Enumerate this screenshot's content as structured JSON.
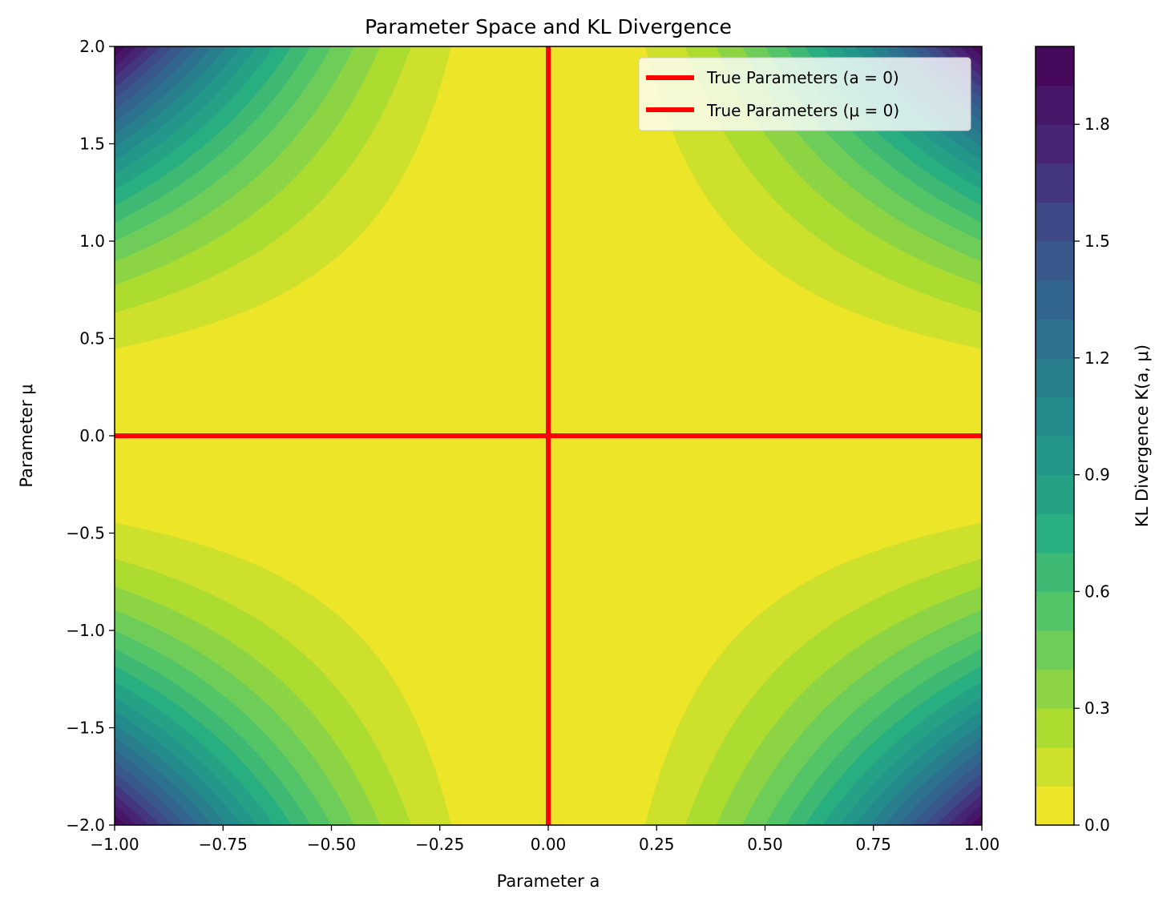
{
  "chart_data": {
    "type": "heatmap",
    "subtype": "filled-contour",
    "title": "Parameter Space and KL Divergence",
    "xlabel": "Parameter a",
    "ylabel": "Parameter μ",
    "xlim": [
      -1.0,
      1.0
    ],
    "ylim": [
      -2.0,
      2.0
    ],
    "x_ticks": [
      -1.0,
      -0.75,
      -0.5,
      -0.25,
      0.0,
      0.25,
      0.5,
      0.75,
      1.0
    ],
    "x_tick_labels": [
      "−1.00",
      "−0.75",
      "−0.50",
      "−0.25",
      "0.00",
      "0.25",
      "0.50",
      "0.75",
      "1.00"
    ],
    "y_ticks": [
      -2.0,
      -1.5,
      -1.0,
      -0.5,
      0.0,
      0.5,
      1.0,
      1.5,
      2.0
    ],
    "y_tick_labels": [
      "−2.0",
      "−1.5",
      "−1.0",
      "−0.5",
      "0.0",
      "0.5",
      "1.0",
      "1.5",
      "2.0"
    ],
    "colormap": "viridis_r",
    "z_function": "0.5 * a^2 * mu^2",
    "levels": [
      0.0,
      0.1,
      0.2,
      0.3,
      0.4,
      0.5,
      0.6,
      0.7,
      0.8,
      0.9,
      1.0,
      1.1,
      1.2,
      1.3,
      1.4,
      1.5,
      1.6,
      1.7,
      1.8,
      1.9,
      2.0
    ],
    "colorbar": {
      "label": "KL Divergence K(a, μ)",
      "ticks": [
        0.0,
        0.3,
        0.6,
        0.9,
        1.2,
        1.5,
        1.8
      ],
      "tick_labels": [
        "0.0",
        "0.3",
        "0.6",
        "0.9",
        "1.2",
        "1.5",
        "1.8"
      ]
    },
    "lines": [
      {
        "name": "True Parameters (a = 0)",
        "orientation": "vertical",
        "value": 0.0,
        "color": "#ff0000"
      },
      {
        "name": "True Parameters (μ = 0)",
        "orientation": "horizontal",
        "value": 0.0,
        "color": "#ff0000"
      }
    ],
    "legend_position": "top-right",
    "grid": false
  }
}
